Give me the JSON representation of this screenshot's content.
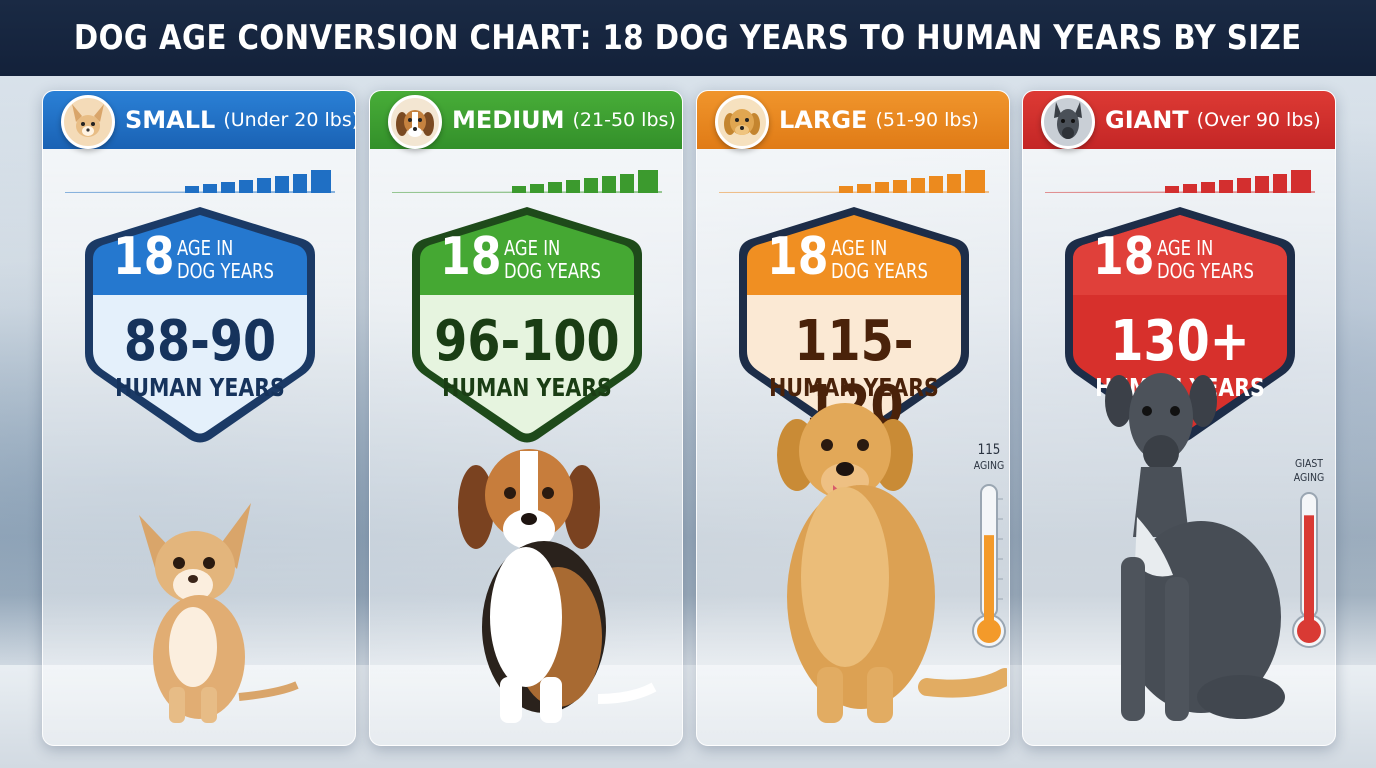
{
  "title": "DOG AGE CONVERSION CHART: 18 DOG YEARS TO HUMAN YEARS BY SIZE",
  "categories": [
    {
      "name": "SMALL",
      "weight_range": "(Under 20 lbs)",
      "dog_age_number": "18",
      "dog_age_label_line1": "AGE IN",
      "dog_age_label_line2": "DOG YEARS",
      "human_range": "88-90",
      "human_label": "HUMAN YEARS",
      "color": "#1f6fc4",
      "dog": "chihuahua"
    },
    {
      "name": "MEDIUM",
      "weight_range": "(21-50 lbs)",
      "dog_age_number": "18",
      "dog_age_label_line1": "AGE IN",
      "dog_age_label_line2": "DOG YEARS",
      "human_range": "96-100",
      "human_label": "HUMAN YEARS",
      "color": "#3c9a2e",
      "dog": "beagle"
    },
    {
      "name": "LARGE",
      "weight_range": "(51-90 lbs)",
      "dog_age_number": "18",
      "dog_age_label_line1": "AGE IN",
      "dog_age_label_line2": "DOG YEARS",
      "human_range": "115-120",
      "human_label": "HUMAN YEARS",
      "color": "#ec8a1e",
      "dog": "golden-retriever",
      "thermometer": {
        "value_label": "115",
        "sub_label": "AGING",
        "color": "#f39a2a",
        "fill_level": 0.62
      }
    },
    {
      "name": "GIANT",
      "weight_range": "(Over 90 lbs)",
      "dog_age_number": "18",
      "dog_age_label_line1": "AGE IN",
      "dog_age_label_line2": "DOG YEARS",
      "human_range": "130+",
      "human_label": "HUMAN YEARS",
      "color": "#d32f2f",
      "dog": "great-dane",
      "thermometer": {
        "value_label": "GIAST",
        "sub_label": "AGING",
        "color": "#d93a34",
        "fill_level": 0.82
      }
    }
  ]
}
